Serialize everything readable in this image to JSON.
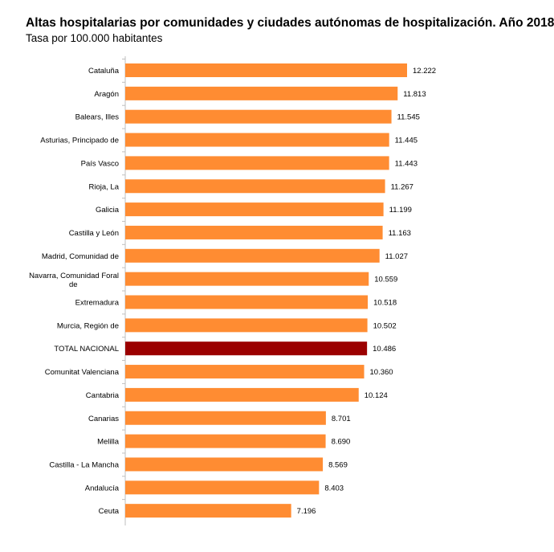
{
  "chart_data": {
    "type": "bar",
    "orientation": "horizontal",
    "title": "Altas hospitalarias por comunidades y ciudades autónomas de hospitalización. Año 2018",
    "subtitle": "Tasa por 100.000 habitantes",
    "categories": [
      "Cataluña",
      "Aragón",
      "Balears, Illes",
      "Asturias, Principado de",
      "País Vasco",
      "Rioja, La",
      "Galicia",
      "Castilla y León",
      "Madrid, Comunidad de",
      "Navarra, Comunidad Foral de",
      "Extremadura",
      "Murcia, Región de",
      "TOTAL NACIONAL",
      "Comunitat Valenciana",
      "Cantabria",
      "Canarias",
      "Melilla",
      "Castilla - La Mancha",
      "Andalucía",
      "Ceuta"
    ],
    "values": [
      12222,
      11813,
      11545,
      11445,
      11443,
      11267,
      11199,
      11163,
      11027,
      10559,
      10518,
      10502,
      10486,
      10360,
      10124,
      8701,
      8690,
      8569,
      8403,
      7196
    ],
    "value_labels": [
      "12.222",
      "11.813",
      "11.545",
      "11.445",
      "11.443",
      "11.267",
      "11.199",
      "11.163",
      "11.027",
      "10.559",
      "10.518",
      "10.502",
      "10.486",
      "10.360",
      "10.124",
      "8.701",
      "8.690",
      "8.569",
      "8.403",
      "7.196"
    ],
    "highlight_category": "TOTAL NACIONAL",
    "xlim": [
      0,
      12222
    ],
    "grid": false,
    "xlabel": "",
    "ylabel": "",
    "colors": {
      "bar": "#FF8C32",
      "highlight": "#9B0000",
      "axis": "#BFBFBF"
    }
  }
}
